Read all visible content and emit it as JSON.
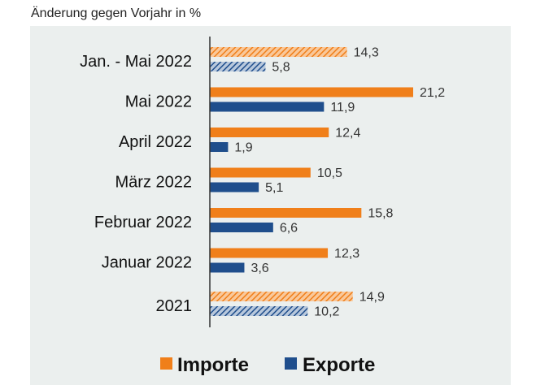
{
  "chart_data": {
    "type": "bar",
    "orientation": "horizontal",
    "title": "Änderung gegen Vorjahr in %",
    "categories": [
      "Jan. - Mai 2022",
      "Mai 2022",
      "April 2022",
      "März 2022",
      "Februar 2022",
      "Januar 2022",
      "2021"
    ],
    "hatched_categories": [
      "Jan. - Mai 2022",
      "2021"
    ],
    "series": [
      {
        "name": "Importe",
        "color": "#f07f1a",
        "values": [
          14.3,
          21.2,
          12.4,
          10.5,
          15.8,
          12.3,
          14.9
        ],
        "labels": [
          "14,3",
          "21,2",
          "12,4",
          "10,5",
          "15,8",
          "12,3",
          "14,9"
        ]
      },
      {
        "name": "Exporte",
        "color": "#1f4e8c",
        "values": [
          5.8,
          11.9,
          1.9,
          5.1,
          6.6,
          3.6,
          10.2
        ],
        "labels": [
          "5,8",
          "11,9",
          "1,9",
          "5,1",
          "6,6",
          "3,6",
          "10,2"
        ]
      }
    ],
    "xlim": [
      0,
      25
    ],
    "grid": false,
    "legend": "bottom",
    "background": "#ebefee"
  }
}
